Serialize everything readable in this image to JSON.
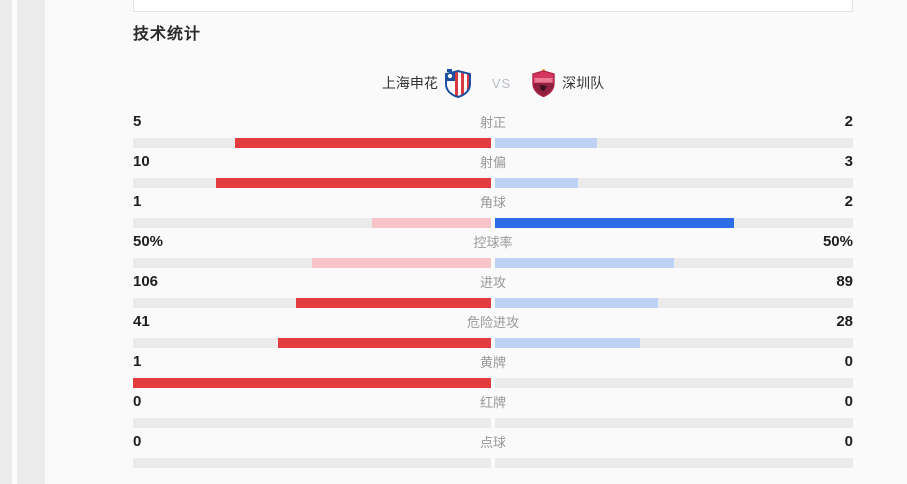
{
  "section": {
    "title": "技术统计"
  },
  "match": {
    "home": {
      "name": "上海申花"
    },
    "away": {
      "name": "深圳队"
    },
    "vs": "VS"
  },
  "colors": {
    "home_strong": "#e23c3f",
    "home_light": "#f7c4c9",
    "away_strong": "#2e6de8",
    "away_light": "#bfd2f6",
    "track": "#ebebeb"
  },
  "chart_data": {
    "type": "bar",
    "title": "技术统计",
    "categories": [
      "射正",
      "射偏",
      "角球",
      "控球率",
      "进攻",
      "危险进攻",
      "黄牌",
      "红牌",
      "点球"
    ],
    "series": [
      {
        "name": "上海申花",
        "values": [
          5,
          10,
          1,
          50,
          106,
          41,
          1,
          0,
          0
        ]
      },
      {
        "name": "深圳队",
        "values": [
          2,
          3,
          2,
          50,
          89,
          28,
          0,
          0,
          0
        ]
      }
    ],
    "note": "bar length = value / (home+away) of each half; larger side gets saturated color, smaller/tied side gets light tint"
  },
  "stats": [
    {
      "label": "射正",
      "home": "5",
      "away": "2",
      "home_pct": 71.4,
      "away_pct": 28.6,
      "home_tone": "strong",
      "away_tone": "light"
    },
    {
      "label": "射偏",
      "home": "10",
      "away": "3",
      "home_pct": 76.9,
      "away_pct": 23.1,
      "home_tone": "strong",
      "away_tone": "light"
    },
    {
      "label": "角球",
      "home": "1",
      "away": "2",
      "home_pct": 33.3,
      "away_pct": 66.7,
      "home_tone": "light",
      "away_tone": "strong"
    },
    {
      "label": "控球率",
      "home": "50%",
      "away": "50%",
      "home_pct": 50,
      "away_pct": 50,
      "home_tone": "light",
      "away_tone": "light"
    },
    {
      "label": "进攻",
      "home": "106",
      "away": "89",
      "home_pct": 54.4,
      "away_pct": 45.6,
      "home_tone": "strong",
      "away_tone": "light"
    },
    {
      "label": "危险进攻",
      "home": "41",
      "away": "28",
      "home_pct": 59.4,
      "away_pct": 40.6,
      "home_tone": "strong",
      "away_tone": "light"
    },
    {
      "label": "黄牌",
      "home": "1",
      "away": "0",
      "home_pct": 100,
      "away_pct": 0,
      "home_tone": "strong",
      "away_tone": "light"
    },
    {
      "label": "红牌",
      "home": "0",
      "away": "0",
      "home_pct": 0,
      "away_pct": 0,
      "home_tone": "light",
      "away_tone": "light"
    },
    {
      "label": "点球",
      "home": "0",
      "away": "0",
      "home_pct": 0,
      "away_pct": 0,
      "home_tone": "light",
      "away_tone": "light"
    }
  ]
}
